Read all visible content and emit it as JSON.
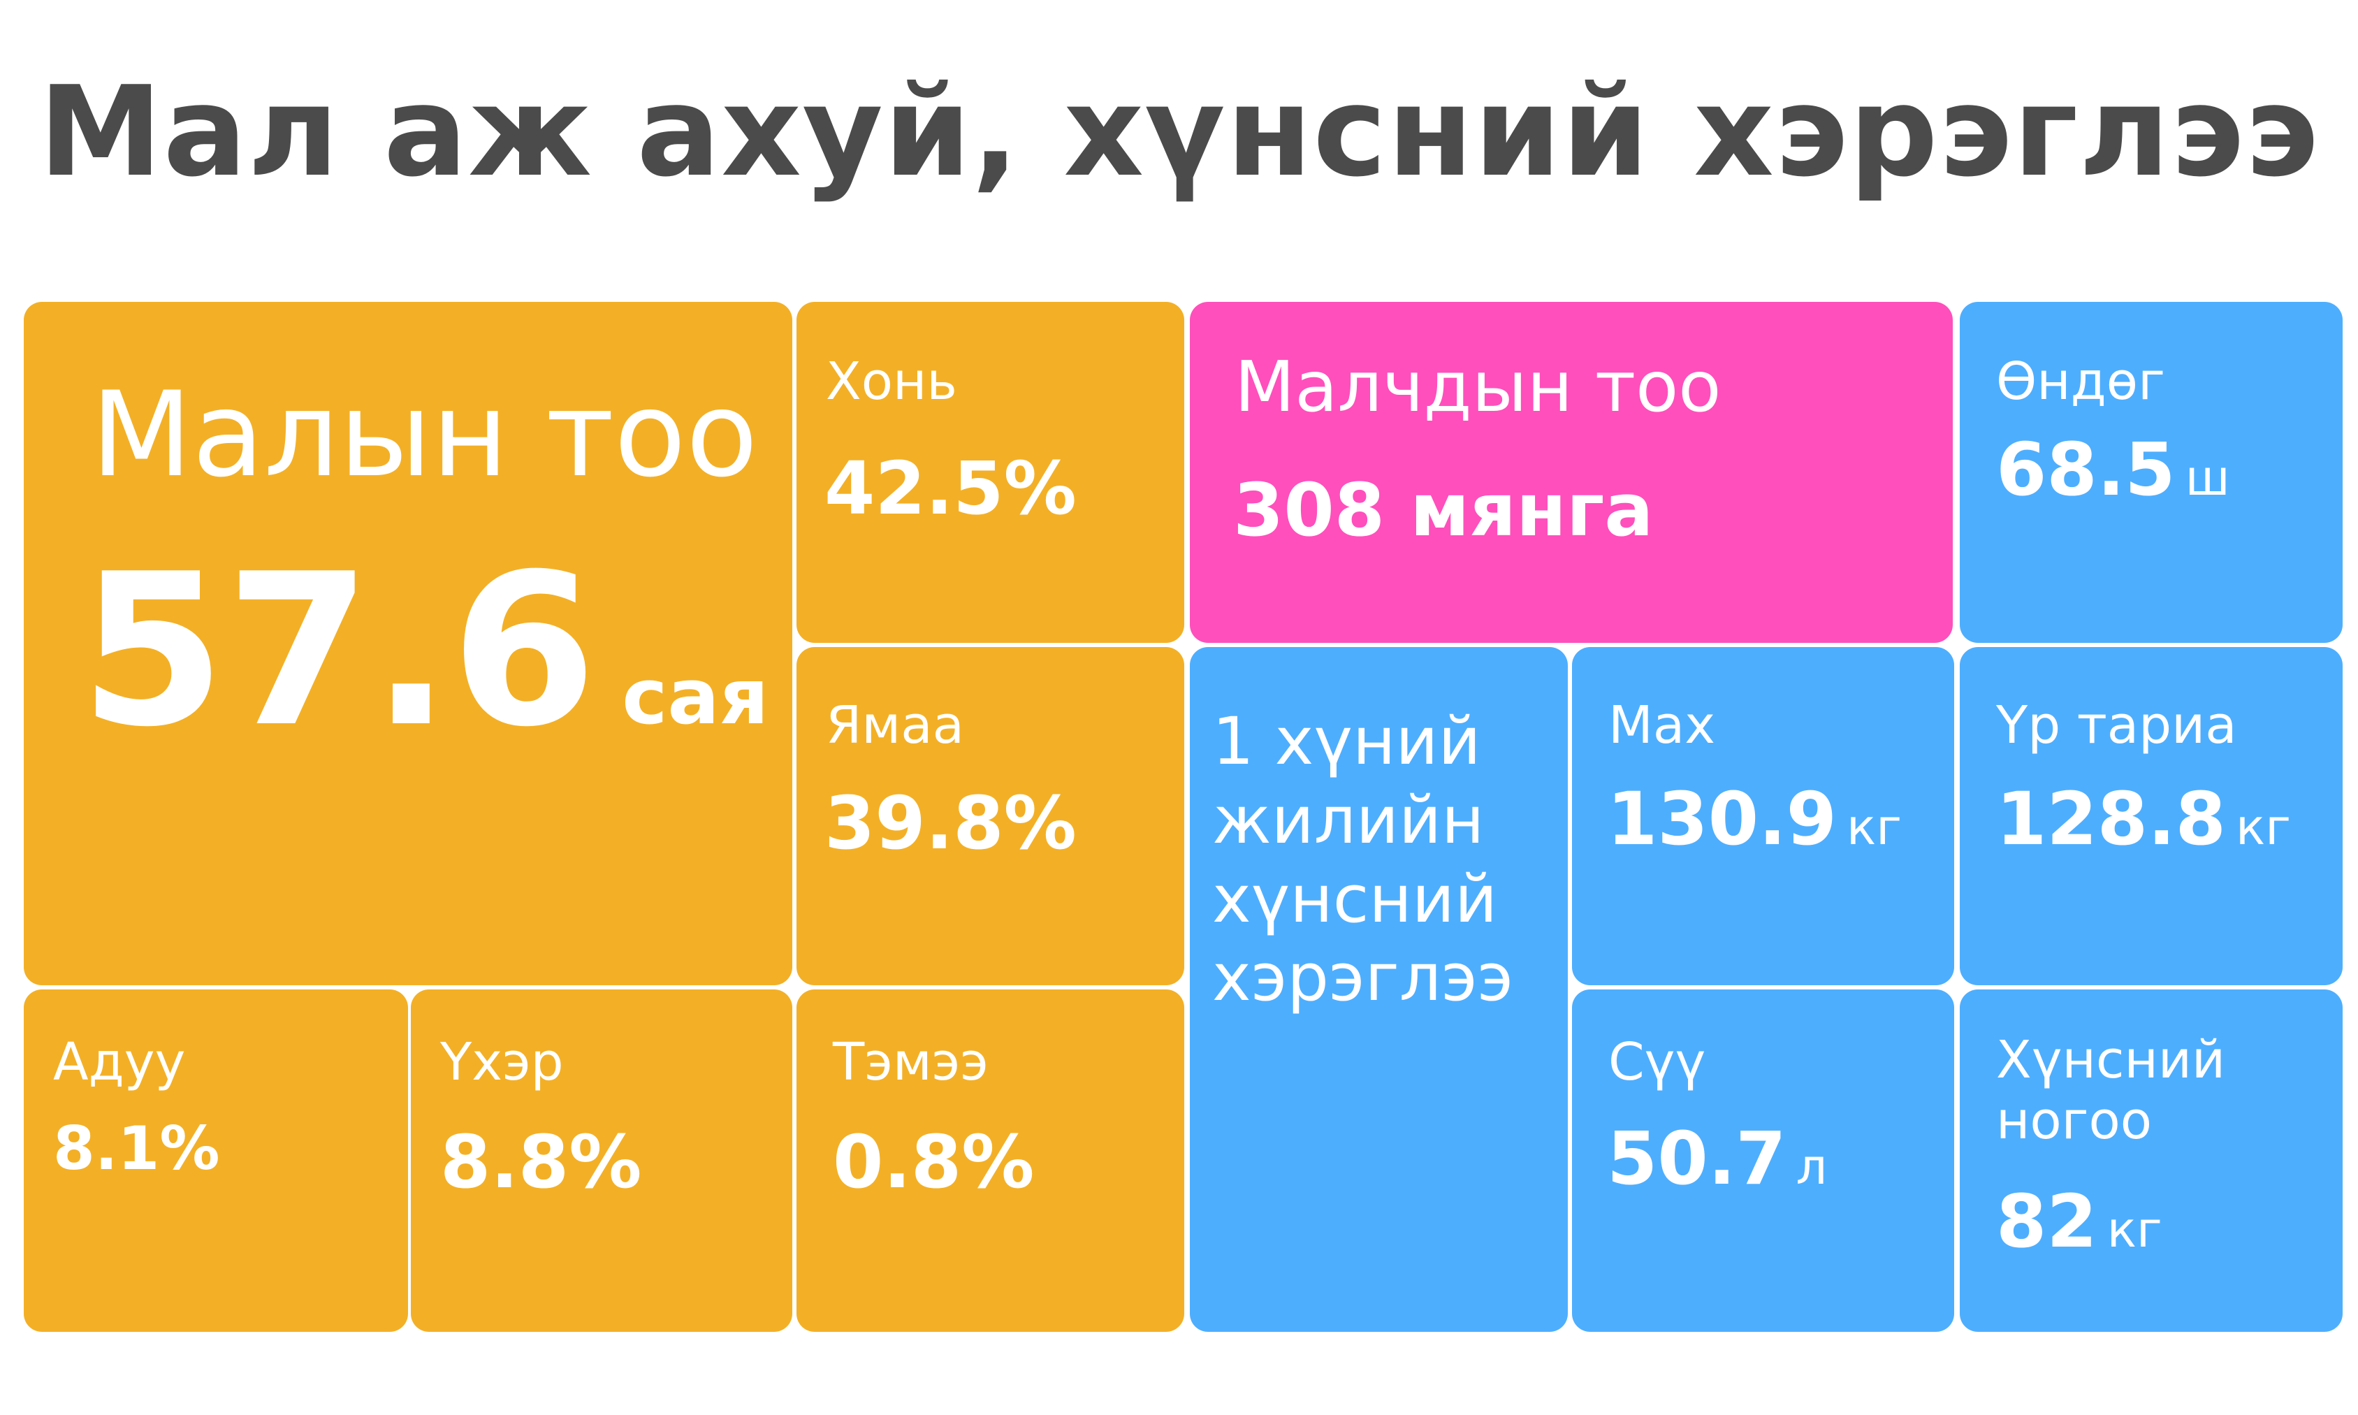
{
  "title": "Мал аж ахуй, хүнсний хэрэглээ",
  "colors": {
    "livestock": "#f3b026",
    "herders": "#ff4fbc",
    "consumption": "#4eaefe",
    "title": "#4b4b4b"
  },
  "livestock": {
    "total": {
      "label": "Малын тоо",
      "value": "57.6",
      "unit": "сая"
    },
    "sheep": {
      "label": "Хонь",
      "value": "42.5%"
    },
    "goat": {
      "label": "Ямаа",
      "value": "39.8%"
    },
    "horse": {
      "label": "Адуу",
      "value": "8.1%"
    },
    "cattle": {
      "label": "Үхэр",
      "value": "8.8%"
    },
    "camel": {
      "label": "Тэмээ",
      "value": "0.8%"
    }
  },
  "herders": {
    "label": "Малчдын тоо",
    "value": "308 мянга"
  },
  "consumption": {
    "header": "1 хүний жилийн хүнсний хэрэглээ",
    "eggs": {
      "label": "Өндөг",
      "value": "68.5",
      "unit": "ш"
    },
    "meat": {
      "label": "Мах",
      "value": "130.9",
      "unit": "кг"
    },
    "grain": {
      "label": "Үр тариа",
      "value": "128.8",
      "unit": "кг"
    },
    "milk": {
      "label": "Сүү",
      "value": "50.7",
      "unit": "л"
    },
    "vegetables": {
      "label": "Хүнсний ногоо",
      "value": "82",
      "unit": "кг"
    }
  }
}
